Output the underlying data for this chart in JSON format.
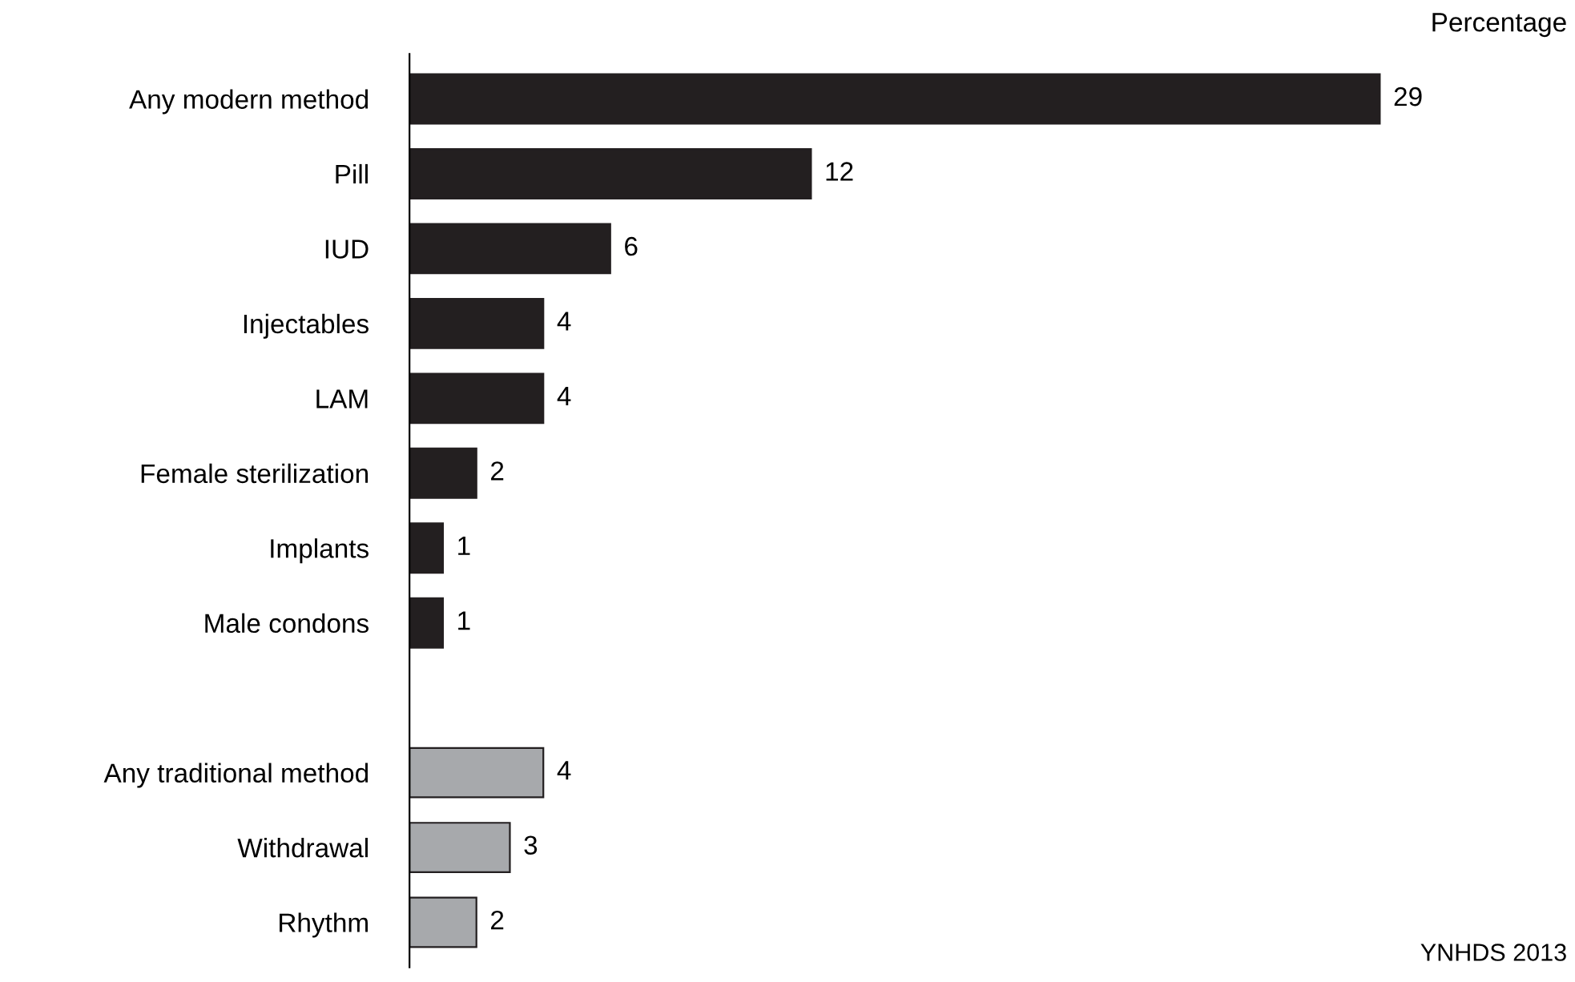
{
  "chart_data": {
    "type": "bar",
    "orientation": "horizontal",
    "xlabel": "Percentage",
    "categories": [
      "Any modern method",
      "Pill",
      "IUD",
      "Injectables",
      "LAM",
      "Female sterilization",
      "Implants",
      "Male condons",
      null,
      "Any traditional method",
      "Withdrawal",
      "Rhythm"
    ],
    "values": [
      29,
      12,
      6,
      4,
      4,
      2,
      1,
      1,
      null,
      4,
      3,
      2
    ],
    "colors": [
      "#231f20",
      "#231f20",
      "#231f20",
      "#231f20",
      "#231f20",
      "#231f20",
      "#231f20",
      "#231f20",
      null,
      "#a7a9ac",
      "#a7a9ac",
      "#a7a9ac"
    ],
    "data_labels": true,
    "tick_labels": "y",
    "grid": false,
    "legend": false,
    "annotations": [
      "YNHDS 2013"
    ]
  }
}
